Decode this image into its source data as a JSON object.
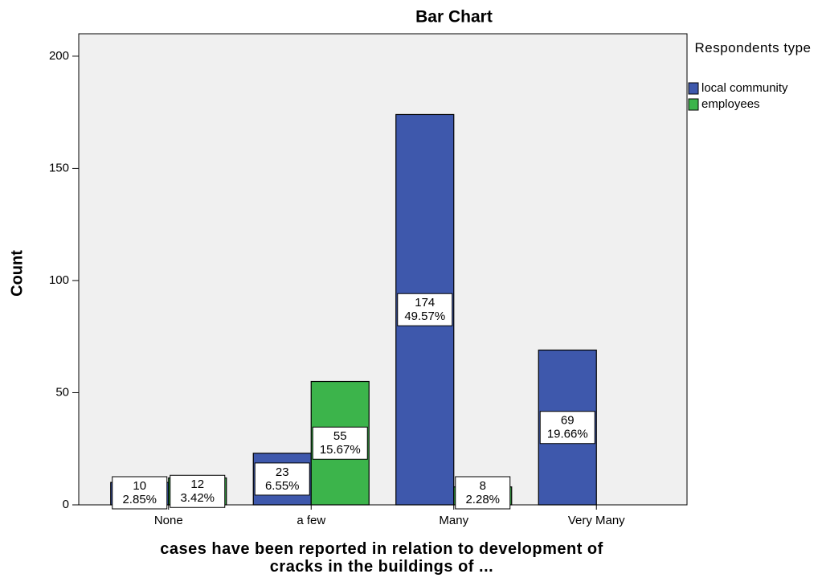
{
  "chart_data": {
    "type": "bar",
    "title": "Bar Chart",
    "y_label": "Count",
    "x_label": "cases have been reported in relation to development of cracks in the buildings of ...",
    "legend_title": "Respondents type",
    "categories": [
      "None",
      "a few",
      "Many",
      "Very  Many"
    ],
    "series": [
      {
        "name": "local community",
        "color": "#3e58ac",
        "values": [
          10,
          23,
          174,
          69
        ],
        "percent_labels": [
          "2.85%",
          "6.55%",
          "49.57%",
          "19.66%"
        ]
      },
      {
        "name": "employees",
        "color": "#3cb44b",
        "values": [
          12,
          55,
          8,
          null
        ],
        "percent_labels": [
          "3.42%",
          "15.67%",
          "2.28%",
          null
        ]
      }
    ],
    "ylim": [
      0,
      210
    ],
    "yticks": [
      0,
      50,
      100,
      150,
      200
    ],
    "plot_background": "#f0f0f0"
  }
}
